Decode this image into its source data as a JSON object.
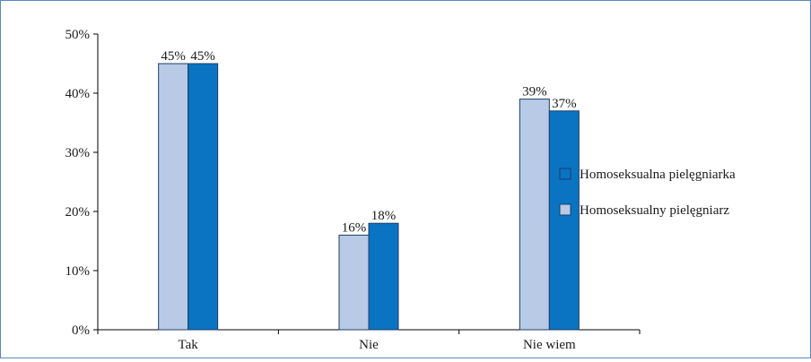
{
  "chart_data": {
    "type": "bar",
    "title": "",
    "xlabel": "",
    "ylabel": "",
    "categories": [
      "Tak",
      "Nie",
      "Nie wiem"
    ],
    "series": [
      {
        "name": "Homoseksualny pielęgniarz",
        "values": [
          45,
          16,
          39
        ],
        "color": "#b8cae6"
      },
      {
        "name": "Homoseksualna pielęgniarka",
        "values": [
          45,
          18,
          37
        ],
        "color": "#0a74c2"
      }
    ],
    "value_suffix": "%",
    "ylim": [
      0,
      50
    ],
    "yticks": [
      0,
      10,
      20,
      30,
      40,
      50
    ],
    "ytick_labels": [
      "0%",
      "10%",
      "20%",
      "30%",
      "40%",
      "50%"
    ],
    "grid": false,
    "legend_position": "right",
    "legend_order": [
      "Homoseksualna pielęgniarka",
      "Homoseksualny pielęgniarz"
    ]
  }
}
